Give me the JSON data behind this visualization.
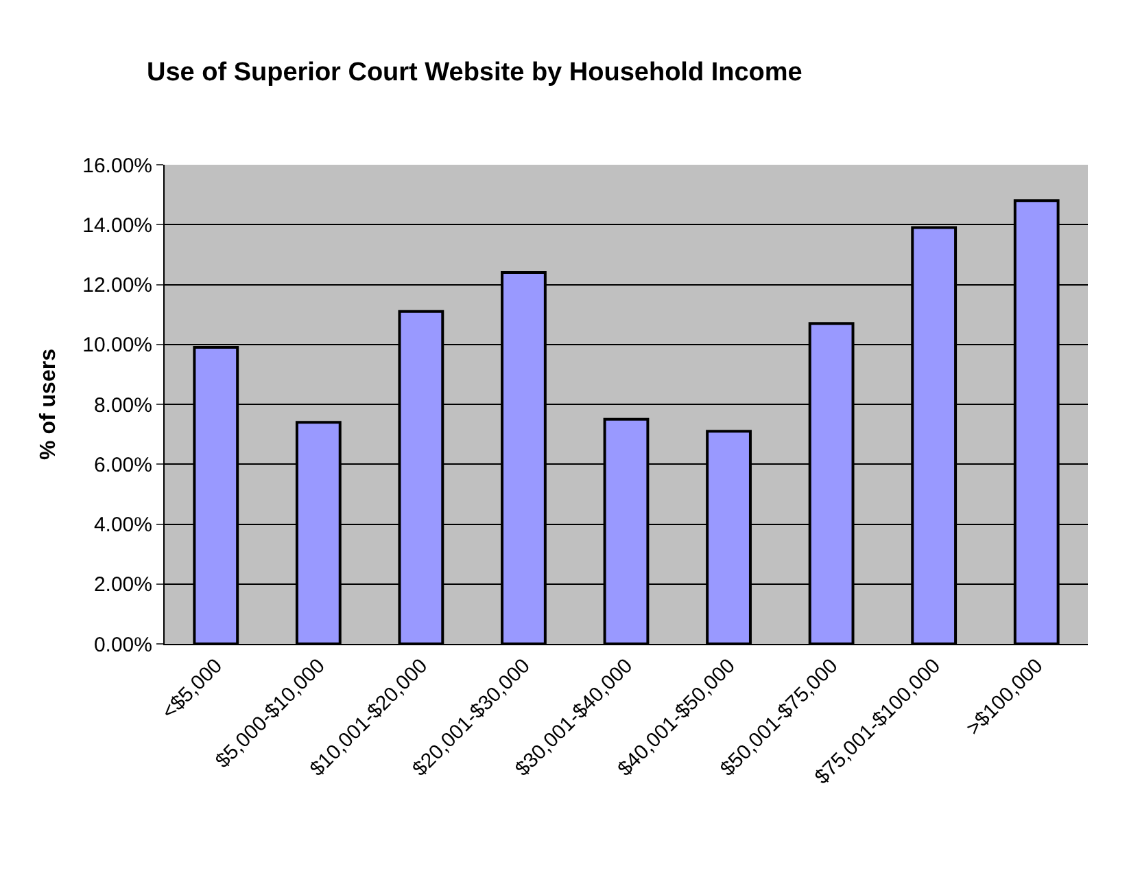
{
  "chart_data": {
    "type": "bar",
    "title": "Use of Superior Court Website by Household Income",
    "ylabel": "% of users",
    "categories": [
      "<$5,000",
      "$5,000-$10,000",
      "$10,001-$20,000",
      "$20,001-$30,000",
      "$30,001-$40,000",
      "$40,001-$50,000",
      "$50,001-$75,000",
      "$75,001-$100,000",
      ">$100,000"
    ],
    "values": [
      9.9,
      7.4,
      11.1,
      12.4,
      7.5,
      7.1,
      10.7,
      13.9,
      14.8
    ],
    "color": "#9999ff",
    "ylim": [
      0,
      16
    ],
    "yticks": [
      {
        "value": 0,
        "label": "0.00%"
      },
      {
        "value": 2,
        "label": "2.00%"
      },
      {
        "value": 4,
        "label": "4.00%"
      },
      {
        "value": 6,
        "label": "6.00%"
      },
      {
        "value": 8,
        "label": "8.00%"
      },
      {
        "value": 10,
        "label": "10.00%"
      },
      {
        "value": 12,
        "label": "12.00%"
      },
      {
        "value": 14,
        "label": "14.00%"
      },
      {
        "value": 16,
        "label": "16.00%"
      }
    ],
    "grid": "y",
    "legend": false
  }
}
